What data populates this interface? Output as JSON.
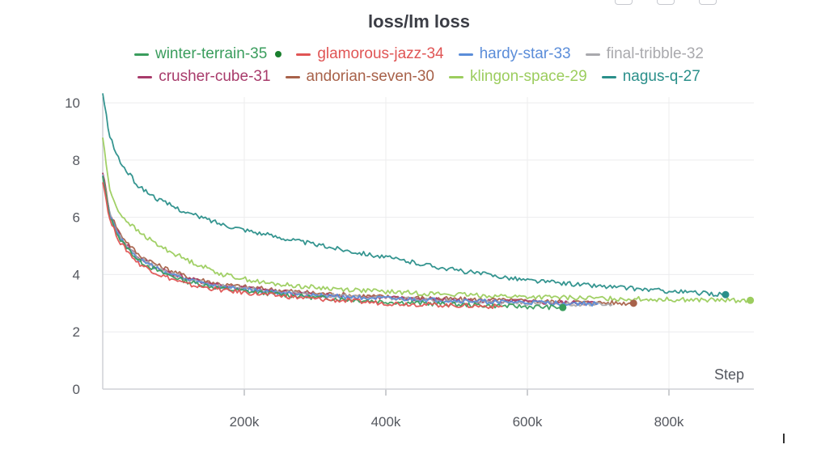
{
  "panel": {
    "title": "loss/lm loss"
  },
  "chart_data": {
    "type": "line",
    "title": "loss/lm loss",
    "xlabel": "Step",
    "ylabel": "",
    "xlim": [
      0,
      920000
    ],
    "ylim": [
      0,
      10.2
    ],
    "xticks": [
      200000,
      400000,
      600000,
      800000
    ],
    "xtick_labels": [
      "200k",
      "400k",
      "600k",
      "800k"
    ],
    "yticks": [
      0,
      2,
      4,
      6,
      8,
      10
    ],
    "ytick_labels": [
      "0",
      "2",
      "4",
      "6",
      "8",
      "10"
    ],
    "grid": true,
    "legend_position": "top",
    "series": [
      {
        "name": "winter-terrain-35",
        "color": "#3a9d5d",
        "end_marker": true,
        "x": [
          0,
          10000,
          25000,
          50000,
          80000,
          120000,
          170000,
          230000,
          300000,
          400000,
          500000,
          600000,
          650000
        ],
        "y": [
          7.4,
          6.0,
          5.2,
          4.5,
          4.1,
          3.75,
          3.5,
          3.35,
          3.2,
          3.05,
          2.95,
          2.88,
          2.85
        ]
      },
      {
        "name": "glamorous-jazz-34",
        "color": "#e05555",
        "end_marker": false,
        "x": [
          0,
          10000,
          25000,
          50000,
          80000,
          120000,
          170000,
          230000,
          300000,
          400000,
          500000,
          565000
        ],
        "y": [
          7.3,
          5.9,
          5.1,
          4.4,
          4.0,
          3.65,
          3.45,
          3.3,
          3.15,
          3.0,
          2.92,
          2.88
        ]
      },
      {
        "name": "hardy-star-33",
        "color": "#5b8dd9",
        "end_marker": false,
        "x": [
          0,
          10000,
          25000,
          50000,
          80000,
          120000,
          170000,
          230000,
          300000,
          400000,
          500000,
          600000,
          700000
        ],
        "y": [
          7.5,
          6.05,
          5.25,
          4.55,
          4.15,
          3.8,
          3.55,
          3.4,
          3.28,
          3.15,
          3.08,
          3.02,
          2.98
        ]
      },
      {
        "name": "final-tribble-32",
        "color": "#a9a9ad",
        "end_marker": false,
        "x": [
          0,
          10000,
          25000,
          50000,
          80000,
          120000,
          170000,
          230000,
          300000,
          400000,
          500000,
          600000,
          720000
        ],
        "y": [
          7.5,
          6.1,
          5.3,
          4.6,
          4.2,
          3.82,
          3.58,
          3.42,
          3.3,
          3.17,
          3.08,
          3.0,
          2.95
        ]
      },
      {
        "name": "crusher-cube-31",
        "color": "#a83b6b",
        "end_marker": false,
        "x": [
          0,
          10000,
          25000,
          50000,
          80000,
          120000,
          170000,
          230000,
          300000,
          400000,
          500000,
          600000,
          700000
        ],
        "y": [
          7.5,
          6.1,
          5.3,
          4.6,
          4.2,
          3.85,
          3.6,
          3.45,
          3.3,
          3.18,
          3.1,
          3.03,
          3.0
        ]
      },
      {
        "name": "andorian-seven-30",
        "color": "#a8624a",
        "end_marker": true,
        "x": [
          0,
          10000,
          25000,
          50000,
          80000,
          120000,
          170000,
          230000,
          300000,
          400000,
          500000,
          600000,
          700000,
          750000
        ],
        "y": [
          7.6,
          6.15,
          5.4,
          4.7,
          4.3,
          3.92,
          3.65,
          3.5,
          3.35,
          3.22,
          3.14,
          3.08,
          3.02,
          3.0
        ]
      },
      {
        "name": "klingon-space-29",
        "color": "#9ccd5e",
        "end_marker": true,
        "x": [
          0,
          10000,
          25000,
          50000,
          80000,
          120000,
          170000,
          230000,
          300000,
          400000,
          500000,
          600000,
          700000,
          800000,
          880000,
          915000
        ],
        "y": [
          8.8,
          6.9,
          6.1,
          5.5,
          5.0,
          4.5,
          4.0,
          3.7,
          3.55,
          3.4,
          3.3,
          3.22,
          3.17,
          3.13,
          3.1,
          3.1
        ]
      },
      {
        "name": "nagus-q-27",
        "color": "#2a8f8a",
        "end_marker": true,
        "x": [
          0,
          10000,
          25000,
          50000,
          80000,
          120000,
          170000,
          230000,
          300000,
          400000,
          500000,
          600000,
          700000,
          800000,
          880000
        ],
        "y": [
          10.3,
          8.8,
          7.9,
          7.1,
          6.6,
          6.15,
          5.75,
          5.4,
          5.05,
          4.6,
          4.15,
          3.8,
          3.6,
          3.42,
          3.3
        ]
      }
    ]
  }
}
